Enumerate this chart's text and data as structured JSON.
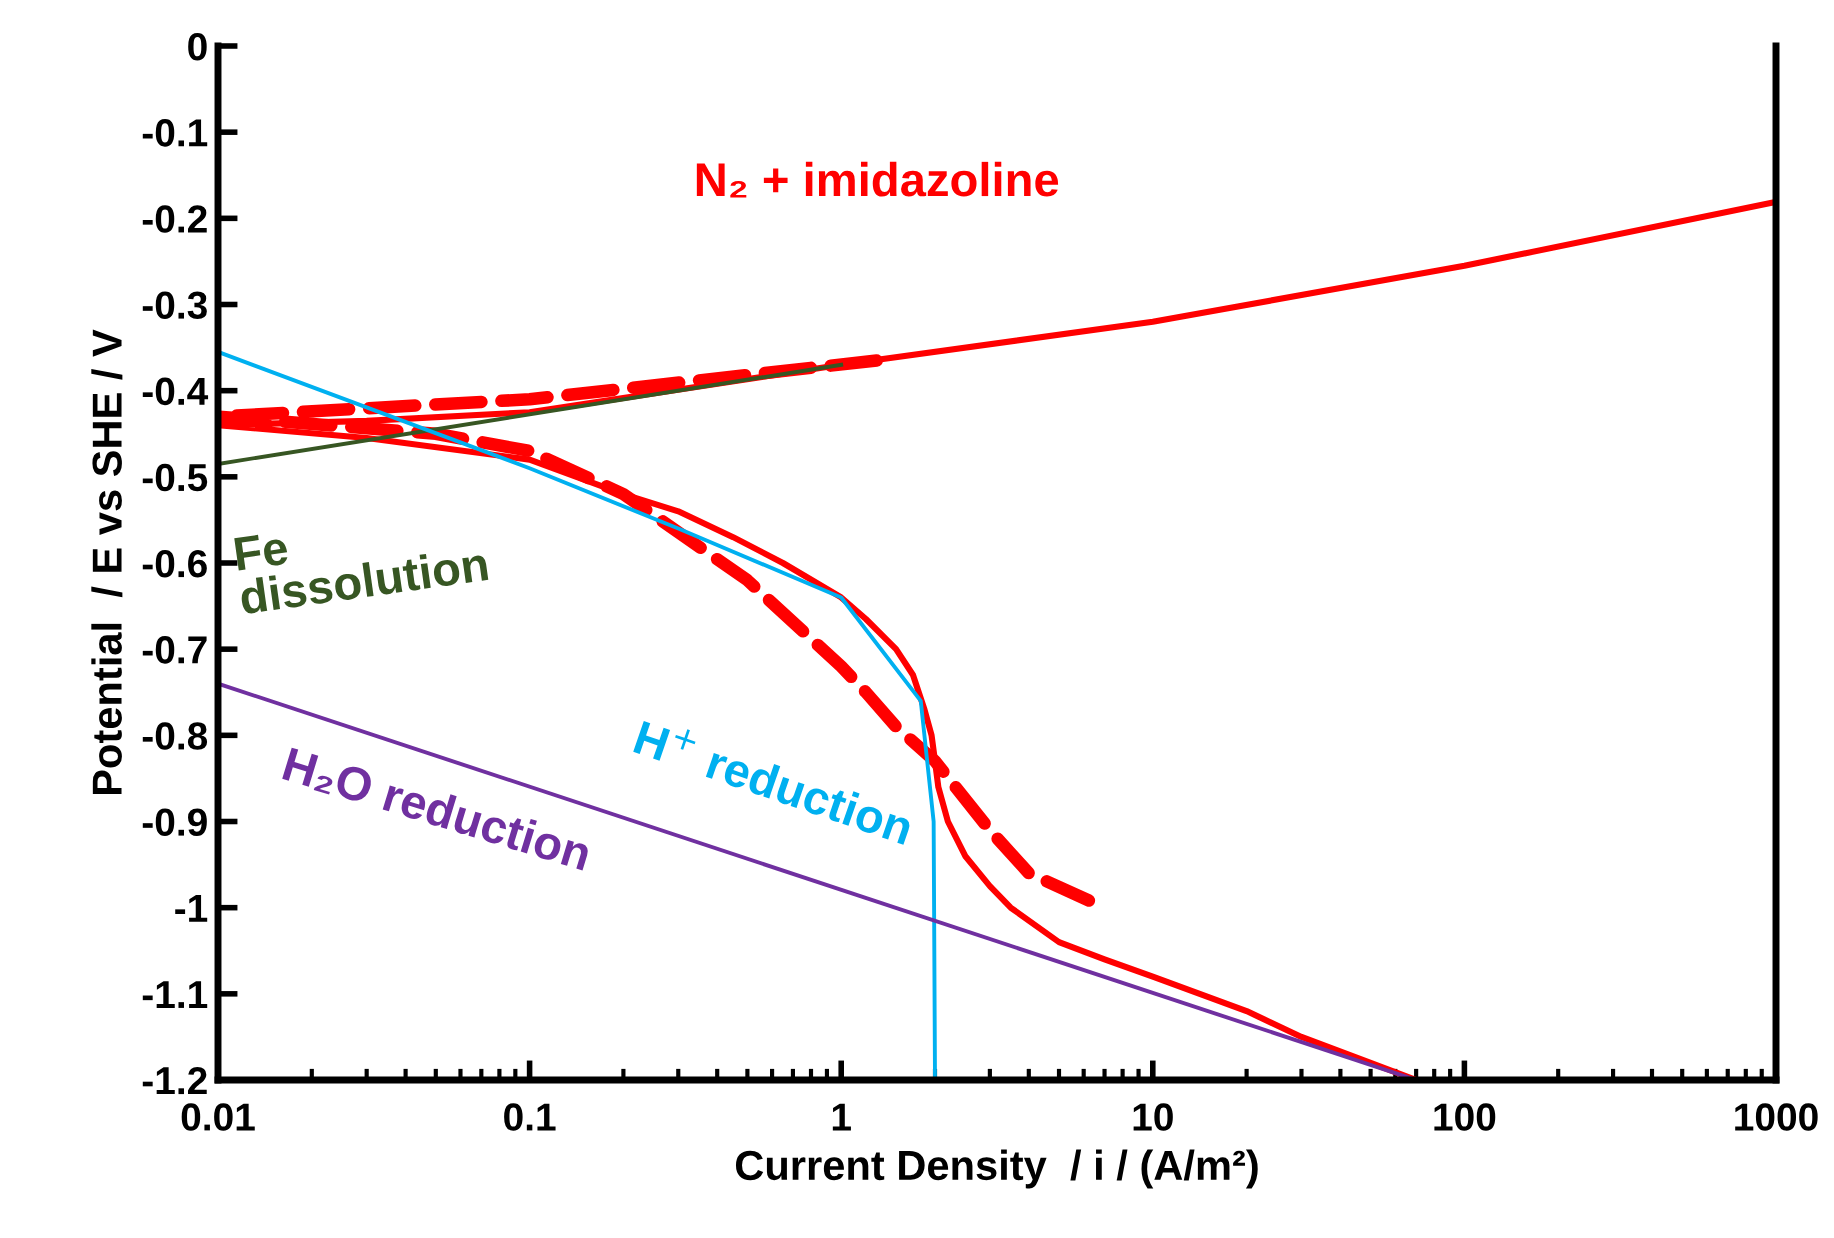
{
  "chart_data": {
    "type": "line",
    "xlabel": "Current Density  / i / (A/m²)",
    "ylabel": "Potential  / E vs SHE / V",
    "log": "x",
    "grid": false,
    "marker": "none",
    "xlim": [
      0.01,
      1000
    ],
    "xticks": [
      0.01,
      0.1,
      1,
      10,
      100,
      1000
    ],
    "ylim": [
      -1.2,
      0
    ],
    "yticks": [
      0,
      -0.1,
      -0.2,
      -0.3,
      -0.4,
      -0.5,
      -0.6,
      -0.7,
      -0.8,
      -0.9,
      -1,
      -1.1,
      -1.2
    ],
    "series": [
      {
        "name": "N₂ + imidazoline",
        "color": "#ff0000",
        "line_style": "solid",
        "x": [
          1000,
          100,
          10,
          1,
          0.1,
          0.03,
          0.01,
          0.03,
          0.1,
          0.2,
          0.3,
          0.45,
          0.65,
          1,
          1.2,
          1.5,
          1.7,
          1.85,
          1.95,
          2.0,
          2.05,
          2.2,
          2.5,
          3,
          3.5,
          5,
          7,
          10,
          20,
          30,
          50,
          70
        ],
        "values": [
          -0.181,
          -0.255,
          -0.32,
          -0.37,
          -0.425,
          -0.435,
          -0.44,
          -0.455,
          -0.48,
          -0.52,
          -0.54,
          -0.57,
          -0.6,
          -0.64,
          -0.665,
          -0.7,
          -0.73,
          -0.77,
          -0.8,
          -0.83,
          -0.86,
          -0.9,
          -0.94,
          -0.975,
          -1.0,
          -1.04,
          -1.06,
          -1.08,
          -1.12,
          -1.15,
          -1.18,
          -1.2
        ]
      },
      {
        "color": "#ff0000",
        "line_style": "dashed",
        "x": [
          1.3,
          0.1,
          0.01,
          0.05,
          0.1,
          0.2,
          0.5,
          1.0,
          1.2,
          1.5,
          2.0,
          3,
          4,
          7
        ],
        "values": [
          -0.365,
          -0.41,
          -0.43,
          -0.45,
          -0.47,
          -0.52,
          -0.62,
          -0.72,
          -0.75,
          -0.79,
          -0.83,
          -0.91,
          -0.96,
          -1.0
        ]
      },
      {
        "name": "Fe dissolution",
        "color": "#375623",
        "line_style": "solid",
        "x": [
          0.01,
          1
        ],
        "values": [
          -0.485,
          -0.37
        ]
      },
      {
        "name": "H$^{+}$ reduction",
        "color": "#00b0f0",
        "line_style": "solid",
        "x": [
          0.01,
          0.1,
          0.3,
          1,
          1.8,
          1.98,
          2.0
        ],
        "values": [
          -0.355,
          -0.49,
          -0.56,
          -0.64,
          -0.76,
          -0.9,
          -1.2
        ]
      },
      {
        "name": "H₂O reduction",
        "color": "#7030a0",
        "line_style": "solid",
        "x": [
          0.01,
          70
        ],
        "values": [
          -0.74,
          -1.2
        ]
      }
    ]
  }
}
